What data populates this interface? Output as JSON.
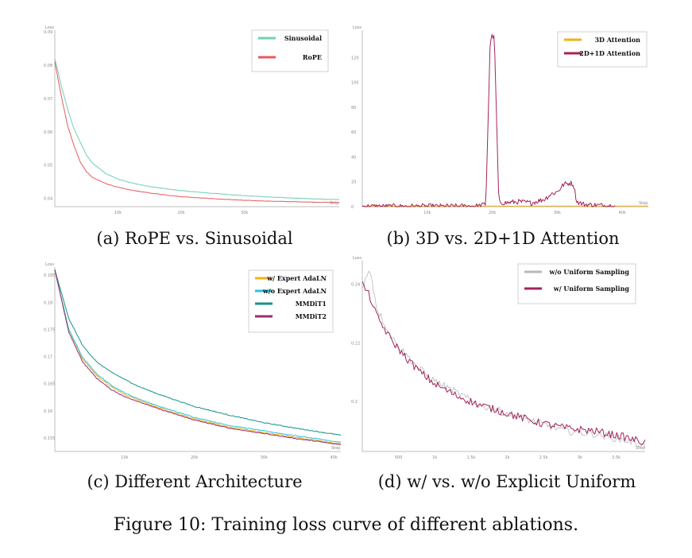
{
  "figure_caption": "Figure 10: Training loss curve of different ablations.",
  "chart_data": [
    {
      "type": "line",
      "caption": "(a) RoPE vs. Sinusoidal",
      "ylabel": "Loss",
      "xlabel": "Step",
      "xlim": [
        0,
        45000
      ],
      "ylim": [
        0.0375,
        0.0905
      ],
      "xticks": [
        {
          "v": 10000,
          "label": "10k"
        },
        {
          "v": 20000,
          "label": "20k"
        },
        {
          "v": 30000,
          "label": "30k"
        }
      ],
      "yticks": [
        {
          "v": 0.04,
          "label": "0.04"
        },
        {
          "v": 0.05,
          "label": "0.05"
        },
        {
          "v": 0.06,
          "label": "0.06"
        },
        {
          "v": 0.07,
          "label": "0.07"
        },
        {
          "v": 0.08,
          "label": "0.08"
        },
        {
          "v": 0.09,
          "label": "0.09"
        }
      ],
      "legend_position": "top-right",
      "series": [
        {
          "name": "Sinusoidal",
          "color": "#6fcfb5",
          "x": [
            0,
            1000,
            2000,
            3000,
            4000,
            5000,
            6000,
            8000,
            10000,
            12000,
            15000,
            20000,
            25000,
            30000,
            35000,
            40000,
            43000,
            45000
          ],
          "y": [
            0.082,
            0.074,
            0.067,
            0.061,
            0.057,
            0.053,
            0.0505,
            0.0475,
            0.0458,
            0.0447,
            0.0435,
            0.0423,
            0.0415,
            0.0408,
            0.0403,
            0.0399,
            0.0397,
            0.0396
          ]
        },
        {
          "name": "RoPE",
          "color": "#e85a5a",
          "x": [
            0,
            1000,
            2000,
            3000,
            4000,
            5000,
            6000,
            8000,
            10000,
            12000,
            15000,
            20000,
            25000,
            30000,
            35000,
            40000,
            43000,
            45000
          ],
          "y": [
            0.081,
            0.071,
            0.062,
            0.056,
            0.051,
            0.048,
            0.0462,
            0.0445,
            0.0433,
            0.0425,
            0.0416,
            0.0405,
            0.0399,
            0.0394,
            0.0391,
            0.0389,
            0.0388,
            0.0388
          ]
        }
      ]
    },
    {
      "type": "line",
      "caption": "(b) 3D vs. 2D+1D Attention",
      "ylabel": "Loss",
      "xlabel": "Step",
      "xlim": [
        0,
        44000
      ],
      "ylim": [
        0,
        142
      ],
      "xticks": [
        {
          "v": 10000,
          "label": "10k"
        },
        {
          "v": 20000,
          "label": "20k"
        },
        {
          "v": 30000,
          "label": "30k"
        },
        {
          "v": 40000,
          "label": "40k"
        }
      ],
      "yticks": [
        {
          "v": 0,
          "label": "0"
        },
        {
          "v": 20,
          "label": "20"
        },
        {
          "v": 40,
          "label": "40"
        },
        {
          "v": 60,
          "label": "60"
        },
        {
          "v": 80,
          "label": "80"
        },
        {
          "v": 100,
          "label": "100"
        },
        {
          "v": 120,
          "label": "120"
        }
      ],
      "legend_position": "top-right",
      "series": [
        {
          "name": "3D Attention",
          "color": "#f0b21c",
          "x": [
            0,
            10000,
            20000,
            30000,
            40000,
            44000
          ],
          "y": [
            0.5,
            0.5,
            0.5,
            0.5,
            0.5,
            0.5
          ]
        },
        {
          "name": "2D+1D Attention",
          "color": "#a3245c",
          "x": [
            0,
            15000,
            18000,
            19000,
            19700,
            20000,
            20300,
            20400,
            21000,
            22000,
            24000,
            26000,
            28000,
            29000,
            30000,
            31000,
            32000,
            32500,
            33000,
            33500,
            34000,
            35000,
            37000,
            39000
          ],
          "y": [
            0.2,
            0.3,
            0.6,
            2,
            136,
            137,
            136,
            120,
            4,
            3,
            4,
            3,
            6,
            10,
            12,
            18,
            19,
            18,
            4,
            3,
            2,
            1.5,
            1,
            0.6
          ]
        }
      ]
    },
    {
      "type": "line",
      "caption": "(c) Different Architecture",
      "ylabel": "Loss",
      "xlabel": "Step",
      "xlim": [
        0,
        41000
      ],
      "ylim": [
        0.1525,
        0.1865
      ],
      "xticks": [
        {
          "v": 10000,
          "label": "10k"
        },
        {
          "v": 20000,
          "label": "20k"
        },
        {
          "v": 30000,
          "label": "30k"
        },
        {
          "v": 40000,
          "label": "40k"
        }
      ],
      "yticks": [
        {
          "v": 0.155,
          "label": "0.155"
        },
        {
          "v": 0.16,
          "label": "0.16"
        },
        {
          "v": 0.165,
          "label": "0.165"
        },
        {
          "v": 0.17,
          "label": "0.17"
        },
        {
          "v": 0.175,
          "label": "0.175"
        },
        {
          "v": 0.18,
          "label": "0.18"
        },
        {
          "v": 0.185,
          "label": "0.185"
        }
      ],
      "legend_position": "top-right",
      "series": [
        {
          "name": "w/ Expert AdaLN",
          "color": "#f0b21c",
          "x": [
            0,
            2000,
            4000,
            6000,
            8000,
            10000,
            12000,
            15000,
            20000,
            25000,
            30000,
            35000,
            38000,
            40000,
            41000
          ],
          "y": [
            0.186,
            0.175,
            0.1695,
            0.1665,
            0.1645,
            0.163,
            0.162,
            0.1605,
            0.1585,
            0.157,
            0.156,
            0.155,
            0.1545,
            0.154,
            0.154
          ]
        },
        {
          "name": "w/o Expert AdaLN",
          "color": "#29c4dc",
          "x": [
            0,
            2000,
            4000,
            6000,
            8000,
            10000,
            12000,
            15000,
            20000,
            25000,
            30000,
            35000,
            38000,
            40000,
            41000
          ],
          "y": [
            0.186,
            0.175,
            0.1698,
            0.1668,
            0.1648,
            0.1633,
            0.1622,
            0.1608,
            0.1588,
            0.1573,
            0.1563,
            0.1553,
            0.1548,
            0.1543,
            0.1543
          ]
        },
        {
          "name": "MMDiT1",
          "color": "#18928a",
          "x": [
            0,
            2000,
            4000,
            6000,
            8000,
            10000,
            12000,
            15000,
            20000,
            25000,
            30000,
            35000,
            38000,
            40000,
            41000
          ],
          "y": [
            0.186,
            0.177,
            0.172,
            0.169,
            0.1672,
            0.1658,
            0.1645,
            0.163,
            0.1608,
            0.1592,
            0.1578,
            0.1567,
            0.1561,
            0.1557,
            0.1555
          ]
        },
        {
          "name": "MMDiT2",
          "color": "#9a2e6e",
          "x": [
            0,
            2000,
            4000,
            6000,
            8000,
            10000,
            12000,
            15000,
            20000,
            25000,
            30000,
            35000,
            38000,
            40000,
            41000
          ],
          "y": [
            0.186,
            0.1745,
            0.169,
            0.166,
            0.164,
            0.1626,
            0.1617,
            0.1603,
            0.1583,
            0.1568,
            0.1558,
            0.1548,
            0.1543,
            0.1539,
            0.1538
          ]
        }
      ]
    },
    {
      "type": "line",
      "caption": "(d) w/ vs. w/o Explicit Uniform",
      "ylabel": "Loss",
      "xlabel": "Step",
      "xlim": [
        0,
        3900
      ],
      "ylim": [
        0.183,
        0.248
      ],
      "xticks": [
        {
          "v": 500,
          "label": "500"
        },
        {
          "v": 1000,
          "label": "1k"
        },
        {
          "v": 1500,
          "label": "1.5k"
        },
        {
          "v": 2000,
          "label": "2k"
        },
        {
          "v": 2500,
          "label": "2.5k"
        },
        {
          "v": 3000,
          "label": "3k"
        },
        {
          "v": 3500,
          "label": "3.5k"
        }
      ],
      "yticks": [
        {
          "v": 0.2,
          "label": "0.2"
        },
        {
          "v": 0.22,
          "label": "0.22"
        },
        {
          "v": 0.24,
          "label": "0.24"
        }
      ],
      "legend_position": "top-right",
      "series": [
        {
          "name": "w/o Uniform Sampling",
          "color": "#b8b8b8",
          "x": [
            0,
            100,
            200,
            400,
            600,
            800,
            1000,
            1300,
            1600,
            2000,
            2400,
            2800,
            3200,
            3600,
            3900
          ],
          "y": [
            0.238,
            0.246,
            0.232,
            0.222,
            0.216,
            0.211,
            0.207,
            0.203,
            0.199,
            0.196,
            0.193,
            0.19,
            0.189,
            0.187,
            0.185
          ]
        },
        {
          "name": "w/ Uniform Sampling",
          "color": "#a3245c",
          "x": [
            0,
            100,
            200,
            400,
            600,
            800,
            1000,
            1300,
            1600,
            2000,
            2400,
            2800,
            3200,
            3600,
            3900
          ],
          "y": [
            0.24,
            0.236,
            0.229,
            0.221,
            0.215,
            0.21,
            0.206,
            0.202,
            0.199,
            0.196,
            0.193,
            0.191,
            0.19,
            0.188,
            0.186
          ]
        }
      ]
    }
  ]
}
